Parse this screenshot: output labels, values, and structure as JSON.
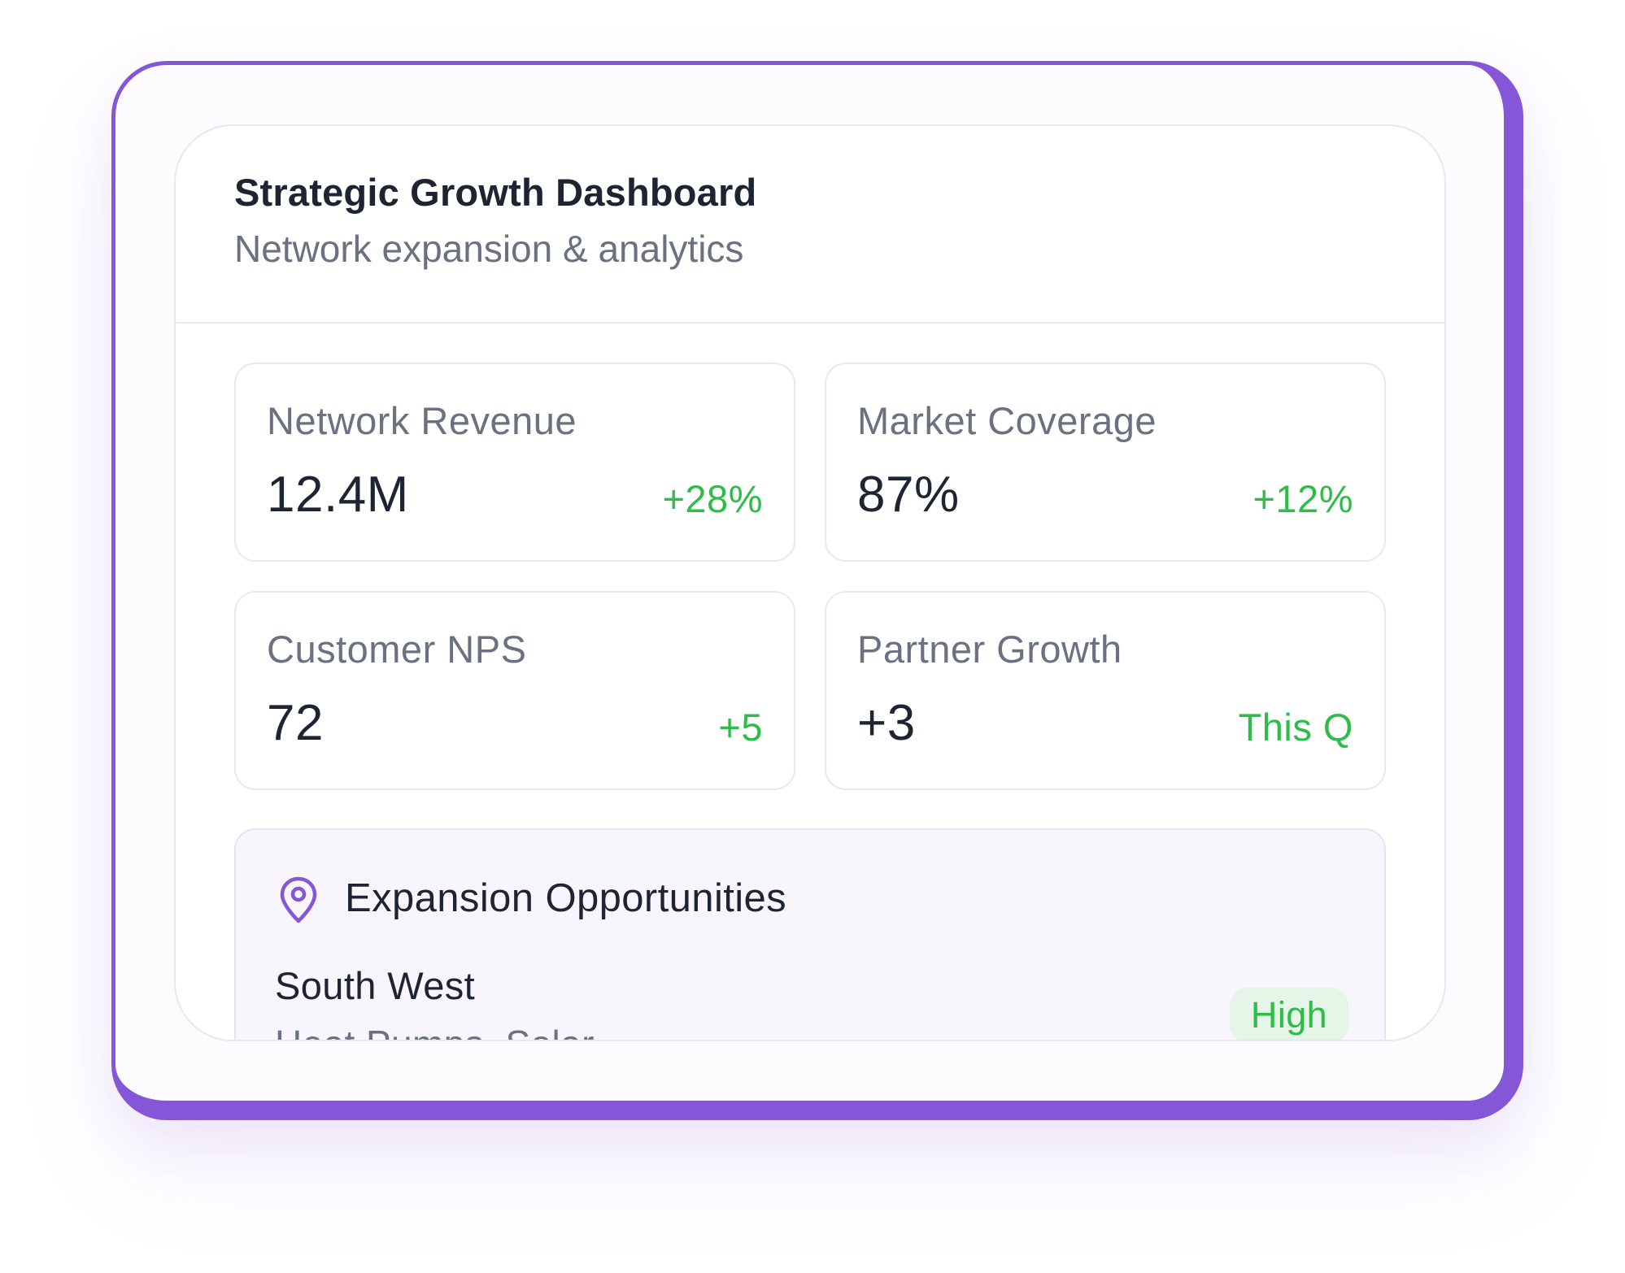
{
  "dashboard": {
    "title": "Strategic Growth Dashboard",
    "subtitle": "Network expansion & analytics"
  },
  "stats": [
    {
      "label": "Network Revenue",
      "value": "12.4M",
      "delta": "+28%"
    },
    {
      "label": "Market Coverage",
      "value": "87%",
      "delta": "+12%"
    },
    {
      "label": "Customer NPS",
      "value": "72",
      "delta": "+5"
    },
    {
      "label": "Partner Growth",
      "value": "+3",
      "delta": "This Q"
    }
  ],
  "opportunities": {
    "title": "Expansion Opportunities",
    "icon": "map-pin-icon",
    "items": [
      {
        "name": "South West",
        "detail": "Heat Pumps, Solar",
        "priority": "High"
      }
    ]
  },
  "colors": {
    "accent": "#8557d8",
    "positive": "#2fbd4a",
    "badge_bg": "#e5f5e7",
    "text_primary": "#1f2433",
    "text_muted": "#6b7180"
  }
}
